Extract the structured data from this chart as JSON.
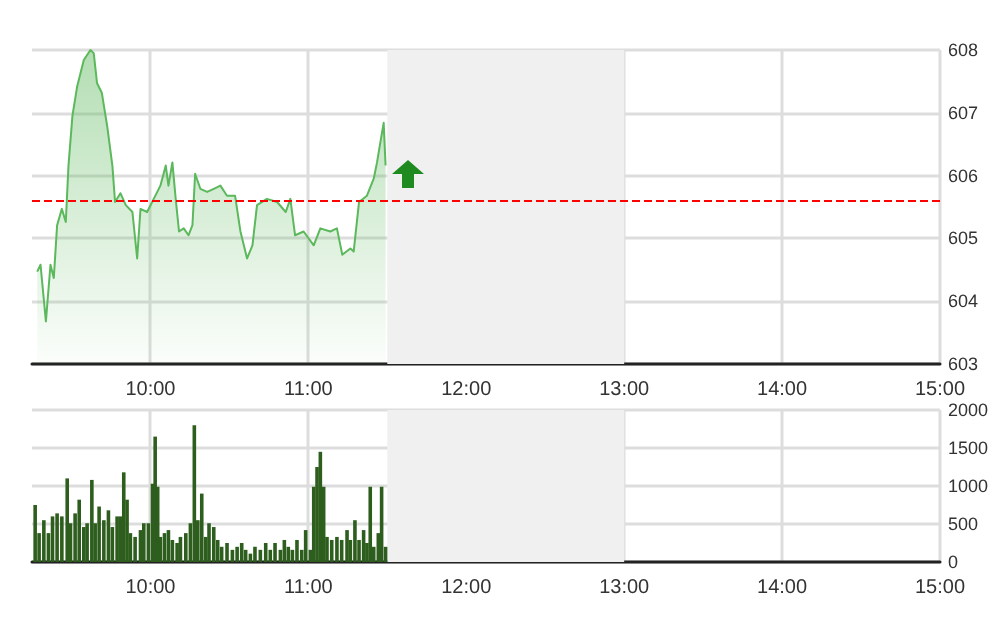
{
  "chart_data": [
    {
      "type": "area",
      "x": [
        9.283,
        9.304,
        9.338,
        9.367,
        9.388,
        9.409,
        9.439,
        9.464,
        9.481,
        9.506,
        9.536,
        9.578,
        9.62,
        9.641,
        9.662,
        9.692,
        9.726,
        9.759,
        9.776,
        9.81,
        9.844,
        9.886,
        9.916,
        9.937,
        9.979,
        10.021,
        10.063,
        10.097,
        10.114,
        10.139,
        10.16,
        10.181,
        10.211,
        10.241,
        10.266,
        10.283,
        10.316,
        10.359,
        10.401,
        10.443,
        10.485,
        10.536,
        10.57,
        10.612,
        10.646,
        10.675,
        10.738,
        10.802,
        10.857,
        10.886,
        10.916,
        10.97,
        11.034,
        11.076,
        11.139,
        11.181,
        11.215,
        11.266,
        11.287,
        11.321,
        11.371,
        11.414,
        11.435,
        11.456,
        11.477,
        11.489
      ],
      "series": [
        {
          "color": "#5cb85c",
          "values": [
            604.47,
            604.58,
            603.68,
            604.58,
            604.37,
            605.21,
            605.47,
            605.26,
            606.16,
            606.95,
            607.42,
            607.84,
            608.0,
            607.95,
            607.47,
            607.32,
            606.79,
            606.16,
            605.58,
            605.72,
            605.53,
            605.42,
            604.68,
            605.47,
            605.42,
            605.63,
            605.84,
            606.16,
            605.84,
            606.21,
            605.63,
            605.11,
            605.16,
            605.05,
            605.21,
            606.03,
            605.79,
            605.74,
            605.79,
            605.84,
            605.68,
            605.68,
            605.11,
            604.68,
            604.89,
            605.53,
            605.63,
            605.58,
            605.42,
            605.63,
            605.05,
            605.11,
            604.89,
            605.16,
            605.11,
            605.16,
            604.74,
            604.84,
            604.79,
            605.58,
            605.68,
            605.95,
            606.21,
            606.53,
            606.84,
            606.16
          ]
        }
      ],
      "xlim": [
        9.25,
        15
      ],
      "xticks": [
        {
          "value": 10,
          "label": "10:00"
        },
        {
          "value": 11,
          "label": "11:00"
        },
        {
          "value": 12,
          "label": "12:00"
        },
        {
          "value": 13,
          "label": "13:00"
        },
        {
          "value": 14,
          "label": "14:00"
        },
        {
          "value": 15,
          "label": "15:00"
        }
      ],
      "ylim": [
        603,
        608
      ],
      "yticks": [
        603,
        604,
        605,
        606,
        607,
        608
      ],
      "ref_lines": [
        {
          "axis": "y",
          "value": 605.6,
          "color": "#ff0000",
          "line_style": "dashed"
        }
      ],
      "bands": [
        {
          "axis": "x",
          "from": 11.5,
          "to": 13,
          "color": "#f0f0f0"
        }
      ],
      "grid": true,
      "marker": "none",
      "line_style": "solid"
    },
    {
      "type": "bar",
      "x": [
        9.27,
        9.295,
        9.325,
        9.354,
        9.38,
        9.409,
        9.439,
        9.473,
        9.494,
        9.523,
        9.549,
        9.578,
        9.599,
        9.629,
        9.65,
        9.675,
        9.705,
        9.734,
        9.759,
        9.789,
        9.81,
        9.831,
        9.852,
        9.873,
        9.903,
        9.937,
        9.958,
        9.987,
        10.013,
        10.03,
        10.046,
        10.063,
        10.089,
        10.114,
        10.139,
        10.169,
        10.19,
        10.224,
        10.253,
        10.278,
        10.3,
        10.325,
        10.35,
        10.371,
        10.401,
        10.426,
        10.451,
        10.485,
        10.519,
        10.549,
        10.578,
        10.603,
        10.633,
        10.662,
        10.696,
        10.73,
        10.759,
        10.789,
        10.823,
        10.848,
        10.873,
        10.899,
        10.928,
        10.958,
        10.983,
        11.013,
        11.034,
        11.055,
        11.076,
        11.097,
        11.118,
        11.148,
        11.181,
        11.211,
        11.245,
        11.266,
        11.295,
        11.321,
        11.35,
        11.371,
        11.392,
        11.414,
        11.443,
        11.464,
        11.489
      ],
      "series": [
        {
          "color": "#2e5e1e",
          "values": [
            750,
            380,
            550,
            380,
            600,
            640,
            600,
            1100,
            510,
            640,
            820,
            460,
            510,
            1080,
            510,
            730,
            550,
            680,
            460,
            600,
            600,
            1180,
            820,
            380,
            330,
            420,
            510,
            510,
            1030,
            1650,
            990,
            330,
            380,
            420,
            290,
            250,
            330,
            380,
            510,
            1800,
            550,
            900,
            330,
            510,
            460,
            290,
            200,
            250,
            160,
            200,
            250,
            160,
            110,
            200,
            160,
            250,
            160,
            250,
            160,
            290,
            200,
            160,
            290,
            160,
            420,
            160,
            990,
            1250,
            1450,
            990,
            330,
            290,
            330,
            290,
            420,
            290,
            550,
            290,
            420,
            250,
            990,
            200,
            380,
            990,
            200
          ]
        }
      ],
      "xlim": [
        9.25,
        15
      ],
      "xticks": [
        {
          "value": 10,
          "label": "10:00"
        },
        {
          "value": 11,
          "label": "11:00"
        },
        {
          "value": 12,
          "label": "12:00"
        },
        {
          "value": 13,
          "label": "13:00"
        },
        {
          "value": 14,
          "label": "14:00"
        },
        {
          "value": 15,
          "label": "15:00"
        }
      ],
      "ylim": [
        0,
        2000
      ],
      "yticks": [
        0,
        500,
        1000,
        1500,
        2000
      ],
      "bands": [
        {
          "axis": "x",
          "from": 11.5,
          "to": 13,
          "color": "#f0f0f0"
        }
      ],
      "grid": true
    }
  ]
}
